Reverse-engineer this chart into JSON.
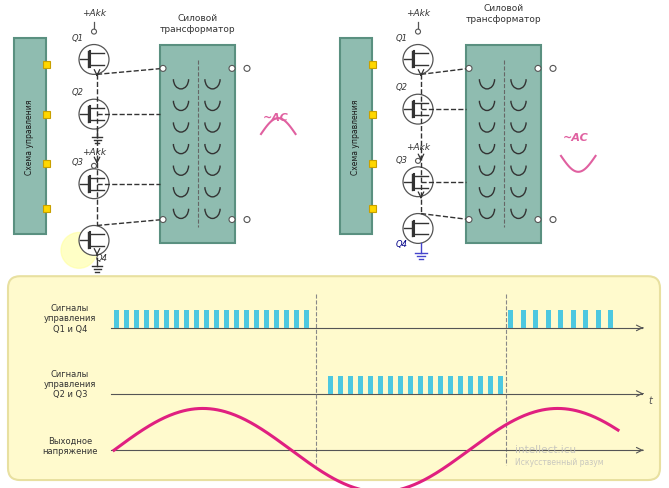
{
  "bg_color": "#ffffff",
  "yellow_box_color": "#fffacd",
  "yellow_box_edge": "#e8e0a0",
  "teal_box_color": "#8fbcb0",
  "teal_box_edge": "#5a9080",
  "yellow_sq_color": "#ffd700",
  "yellow_sq_edge": "#c8a000",
  "signal_color": "#4dc8e0",
  "sine_color2": "#e02080",
  "ac_sine_color": "#e060a0",
  "axis_color": "#555555",
  "text_color": "#333333",
  "label1": "Сигналы\nуправления\nQ1 и Q4",
  "label2": "Сигналы\nуправления\nQ2 и Q3",
  "label3": "Выходное\nнапряжение",
  "schema_label": "Схема управления",
  "transformer_label": "Силовой\nтрансформатор",
  "akk_label": "+Akk",
  "ac_label": "~AC"
}
